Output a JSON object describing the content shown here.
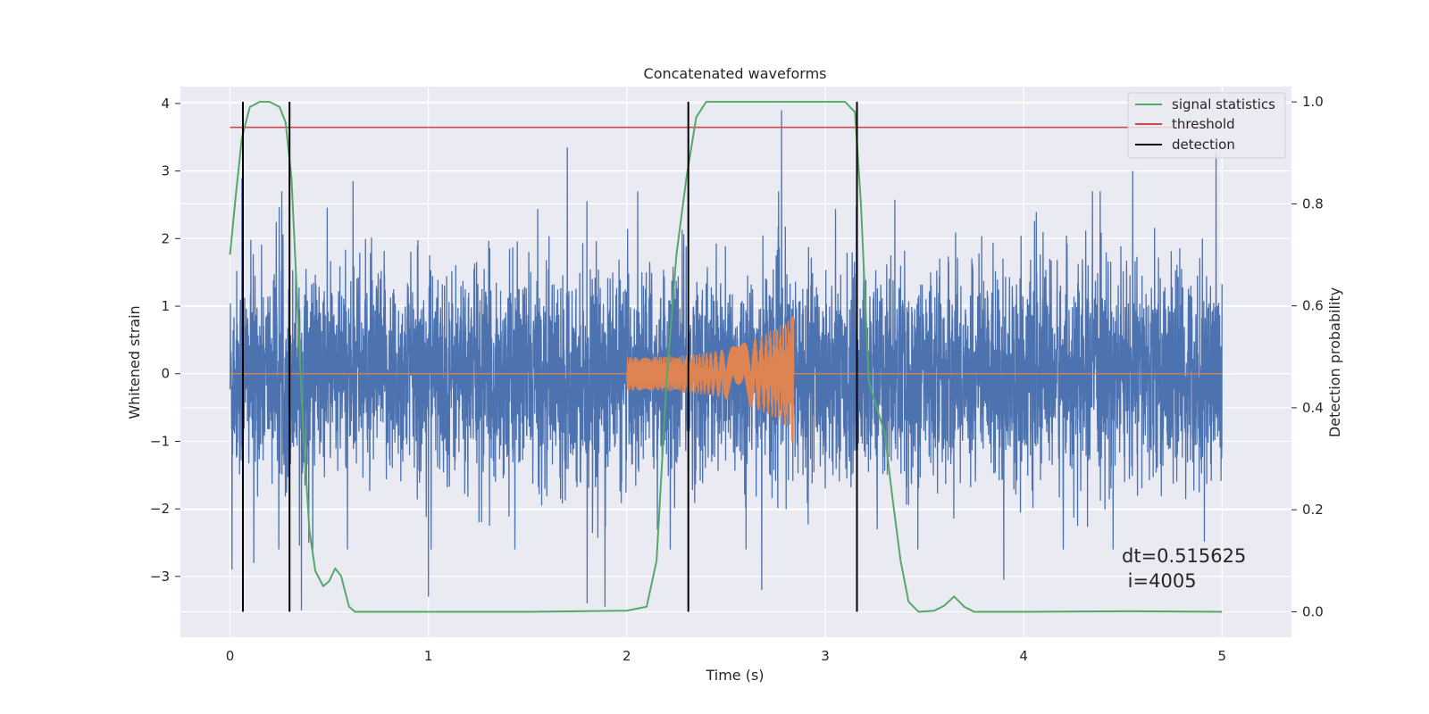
{
  "chart_data": {
    "type": "line",
    "title": "Concatenated waveforms",
    "xlabel": "Time (s)",
    "ylabel": "Whitened strain",
    "ylabel_right": "Detection probability",
    "xlim": [
      -0.25,
      5.35
    ],
    "ylim": [
      -3.9,
      4.25
    ],
    "ylim_right": [
      -0.05,
      1.03
    ],
    "x_ticks": [
      0,
      1,
      2,
      3,
      4,
      5
    ],
    "y_ticks": [
      -3,
      -2,
      -1,
      0,
      1,
      2,
      3,
      4
    ],
    "y_ticks_right": [
      0.0,
      0.2,
      0.4,
      0.6,
      0.8,
      1.0
    ],
    "y_tick_labels": [
      "−3",
      "−2",
      "−1",
      "0",
      "1",
      "2",
      "3",
      "4"
    ],
    "y_tick_labels_right": [
      "0.0",
      "0.2",
      "0.4",
      "0.6",
      "0.8",
      "1.0"
    ],
    "x_tick_labels": [
      "0",
      "1",
      "2",
      "3",
      "4",
      "5"
    ],
    "grid": true,
    "legend_position": "top-right",
    "colors": {
      "strain": "#4c72b0",
      "waveform": "#dd8452",
      "signal": "#55a868",
      "threshold": "#c44e52",
      "detection": "#000000",
      "background": "#eaeaf2",
      "grid": "#ffffff"
    },
    "series": [
      {
        "name": "signal statistics",
        "axis": "right",
        "x": [
          0,
          0.03,
          0.06,
          0.1,
          0.15,
          0.2,
          0.25,
          0.28,
          0.31,
          0.34,
          0.37,
          0.4,
          0.43,
          0.47,
          0.5,
          0.53,
          0.56,
          0.6,
          0.63,
          0.7,
          1.0,
          1.5,
          2.0,
          2.1,
          2.15,
          2.2,
          2.25,
          2.3,
          2.35,
          2.4,
          2.6,
          3.0,
          3.1,
          3.15,
          3.18,
          3.22,
          3.26,
          3.3,
          3.34,
          3.38,
          3.42,
          3.47,
          3.55,
          3.6,
          3.65,
          3.7,
          3.75,
          4.0,
          4.5,
          5.0
        ],
        "y": [
          0.7,
          0.82,
          0.93,
          0.99,
          1.0,
          1.0,
          0.99,
          0.96,
          0.85,
          0.6,
          0.35,
          0.16,
          0.08,
          0.05,
          0.06,
          0.085,
          0.07,
          0.01,
          0.0,
          0.0,
          0.0,
          0.0,
          0.002,
          0.01,
          0.1,
          0.45,
          0.7,
          0.85,
          0.97,
          1.0,
          1.0,
          1.0,
          1.0,
          0.98,
          0.8,
          0.45,
          0.4,
          0.35,
          0.22,
          0.1,
          0.02,
          0.0,
          0.002,
          0.012,
          0.03,
          0.01,
          0.0,
          0.0,
          0.001,
          0.0
        ]
      },
      {
        "name": "threshold",
        "axis": "right",
        "x": [
          0,
          5.0
        ],
        "y": [
          0.95,
          0.95
        ]
      },
      {
        "name": "detection",
        "axis": "right",
        "x": [
          0.065,
          0.3,
          2.31,
          3.16
        ],
        "y_range": [
          0.0,
          1.0
        ]
      },
      {
        "name": "",
        "axis": "left",
        "kind": "whitened strain noise",
        "x_range": [
          0,
          5.0
        ],
        "typical_range": [
          -2.0,
          2.5
        ],
        "peaks": [
          {
            "x": 0.06,
            "y": 2.9
          },
          {
            "x": 0.01,
            "y": -2.9
          },
          {
            "x": 0.12,
            "y": -2.8
          },
          {
            "x": 0.36,
            "y": -3.5
          },
          {
            "x": 0.62,
            "y": 2.85
          },
          {
            "x": 1.0,
            "y": -3.3
          },
          {
            "x": 1.7,
            "y": 3.35
          },
          {
            "x": 1.8,
            "y": -3.4
          },
          {
            "x": 1.89,
            "y": -3.45
          },
          {
            "x": 2.78,
            "y": 3.9
          },
          {
            "x": 2.68,
            "y": -3.2
          },
          {
            "x": 4.97,
            "y": 3.3
          },
          {
            "x": 4.55,
            "y": 3.0
          },
          {
            "x": 3.9,
            "y": -3.05
          }
        ]
      },
      {
        "name": "",
        "axis": "left",
        "kind": "injected waveform",
        "x_range": [
          0,
          5.0
        ],
        "chirp_start": 2.0,
        "chirp_end": 2.84,
        "amplitude_start": 0.25,
        "amplitude_end": 0.85,
        "amplitude_min_at_end": -1.0
      }
    ],
    "legend": [
      {
        "label": "signal statistics",
        "color": "#55a868"
      },
      {
        "label": "threshold",
        "color": "#c44e52"
      },
      {
        "label": "detection",
        "color": "#000000"
      }
    ],
    "annotation": {
      "line1": "dt=0.515625",
      "line2": " i=4005"
    }
  }
}
